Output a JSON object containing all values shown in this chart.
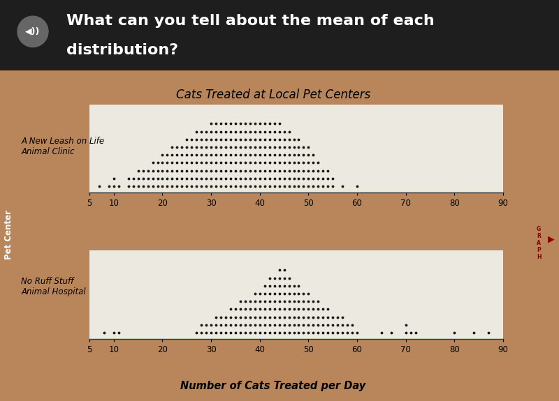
{
  "title": "Cats Treated at Local Pet Centers",
  "xlabel": "Number of Cats Treated per Day",
  "ylabel": "Pet Center",
  "label1": "A New Leash on Life\nAnimal Clinic",
  "label2": "No Ruff Stuff\nAnimal Hospital",
  "xlim": [
    5,
    90
  ],
  "xticks": [
    5,
    10,
    20,
    30,
    40,
    50,
    60,
    70,
    80,
    90
  ],
  "dot_color": "#1a1a1a",
  "dot_size": 3.5,
  "paper_bg": "#ece9e0",
  "header_bg_top": "#2a2a2a",
  "header_bg_bottom": "#111111",
  "header_text_color": "#ffffff",
  "sidebar_bg": "#4a4a4a",
  "wood_bg": "#b8865a",
  "tab_color": "#c8956a",
  "graph_btn_bg": "#d4c400",
  "dist1": {
    "values": [
      7,
      9,
      10,
      11,
      13,
      14,
      15,
      16,
      17,
      18,
      19,
      20,
      21,
      22,
      23,
      24,
      25,
      26,
      27,
      28,
      29,
      30,
      31,
      32,
      33,
      34,
      35,
      36,
      37,
      38,
      39,
      40,
      41,
      42,
      43,
      44,
      45,
      46,
      47,
      48,
      49,
      50,
      51,
      52,
      53,
      54,
      55,
      57,
      60
    ],
    "counts": [
      1,
      1,
      2,
      1,
      2,
      2,
      3,
      3,
      3,
      4,
      4,
      5,
      5,
      6,
      6,
      6,
      7,
      7,
      8,
      8,
      8,
      9,
      9,
      9,
      9,
      9,
      9,
      9,
      9,
      9,
      9,
      9,
      9,
      9,
      9,
      9,
      8,
      8,
      7,
      7,
      6,
      6,
      5,
      4,
      3,
      3,
      2,
      1,
      1
    ]
  },
  "dist2": {
    "values": [
      8,
      10,
      11,
      27,
      28,
      29,
      30,
      31,
      32,
      33,
      34,
      35,
      36,
      37,
      38,
      39,
      40,
      41,
      42,
      43,
      44,
      45,
      46,
      47,
      48,
      49,
      50,
      51,
      52,
      53,
      54,
      55,
      56,
      57,
      58,
      59,
      60,
      65,
      67,
      70,
      71,
      72,
      80,
      84,
      87
    ],
    "counts": [
      1,
      1,
      1,
      1,
      2,
      2,
      2,
      3,
      3,
      3,
      4,
      4,
      5,
      5,
      5,
      6,
      6,
      7,
      8,
      8,
      9,
      9,
      8,
      7,
      7,
      6,
      6,
      5,
      5,
      4,
      4,
      3,
      3,
      3,
      2,
      2,
      1,
      1,
      1,
      2,
      1,
      1,
      1,
      1,
      1
    ]
  }
}
